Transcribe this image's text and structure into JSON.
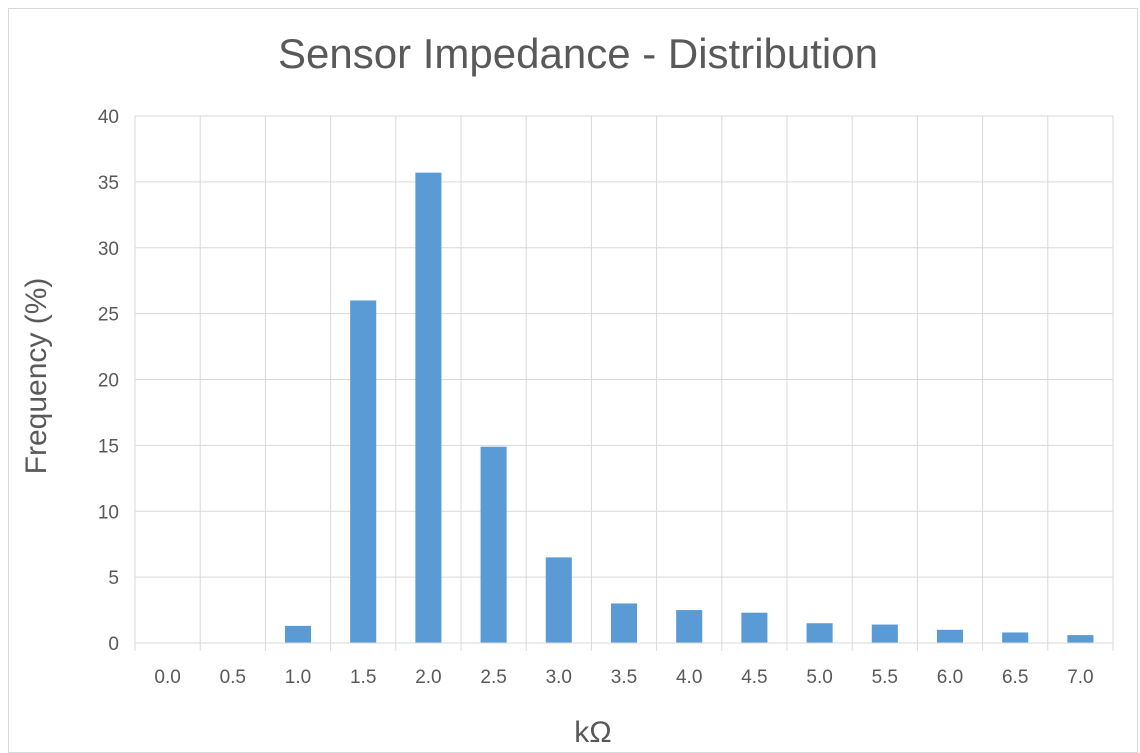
{
  "chart_data": {
    "type": "bar",
    "title": "Sensor Impedance - Distribution",
    "xlabel": "kΩ",
    "ylabel": "Frequency (%)",
    "categories": [
      "0.0",
      "0.5",
      "1.0",
      "1.5",
      "2.0",
      "2.5",
      "3.0",
      "3.5",
      "4.0",
      "4.5",
      "5.0",
      "5.5",
      "6.0",
      "6.5",
      "7.0"
    ],
    "values": [
      0,
      0,
      1.3,
      26.0,
      35.7,
      14.9,
      6.5,
      3.0,
      2.5,
      2.3,
      1.5,
      1.4,
      1.0,
      0.8,
      0.6
    ],
    "ylim": [
      0,
      40
    ],
    "yticks": [
      0,
      5,
      10,
      15,
      20,
      25,
      30,
      35,
      40
    ],
    "grid": true,
    "bar_color": "#5b9bd5",
    "grid_color": "#d9d9d9",
    "text_color": "#595959"
  }
}
